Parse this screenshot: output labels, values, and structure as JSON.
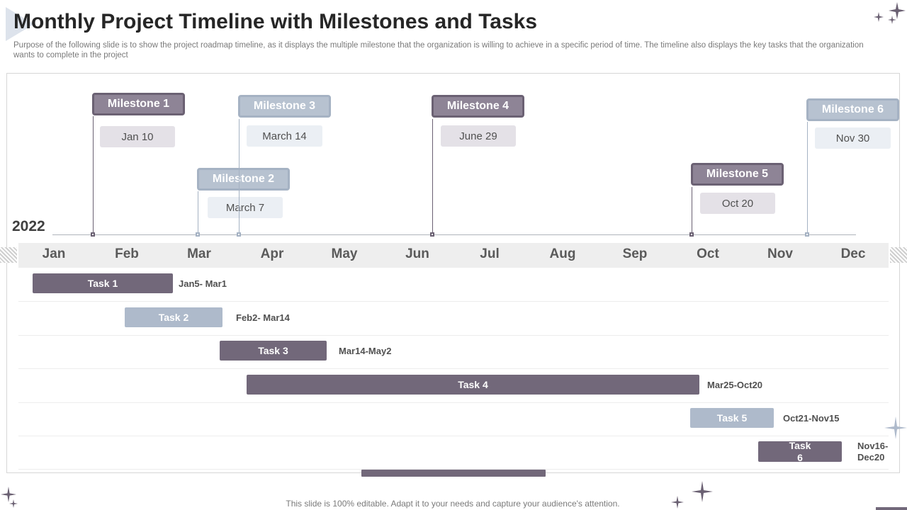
{
  "title": "Monthly Project Timeline with Milestones and Tasks",
  "subtitle": "Purpose of the following slide is to show the project roadmap timeline, as it displays the multiple milestone that the organization is willing to achieve in a specific period of time. The timeline also displays the key tasks that the organization wants to complete in the project",
  "year": "2022",
  "months": [
    "Jan",
    "Feb",
    "Mar",
    "Apr",
    "May",
    "Jun",
    "Jul",
    "Aug",
    "Sep",
    "Oct",
    "Nov",
    "Dec"
  ],
  "milestones": [
    {
      "label": "Milestone 1",
      "date": "Jan 10",
      "style": "dark"
    },
    {
      "label": "Milestone 2",
      "date": "March 7",
      "style": "light"
    },
    {
      "label": "Milestone 3",
      "date": "March 14",
      "style": "light"
    },
    {
      "label": "Milestone 4",
      "date": "June 29",
      "style": "dark"
    },
    {
      "label": "Milestone 5",
      "date": "Oct 20",
      "style": "dark"
    },
    {
      "label": "Milestone 6",
      "date": "Nov 30",
      "style": "light"
    }
  ],
  "tasks": [
    {
      "label": "Task 1",
      "range": "Jan5- Mar1",
      "style": "dark"
    },
    {
      "label": "Task 2",
      "range": "Feb2- Mar14",
      "style": "light"
    },
    {
      "label": "Task 3",
      "range": "Mar14-May2",
      "style": "dark"
    },
    {
      "label": "Task 4",
      "range": "Mar25-Oct20",
      "style": "dark"
    },
    {
      "label": "Task 5",
      "range": "Oct21-Nov15",
      "style": "light"
    },
    {
      "label": "Task 6",
      "range": "Nov16- Dec20",
      "style": "dark"
    }
  ],
  "footer": "This slide is 100% editable. Adapt it to your needs and capture your audience's attention.",
  "colors": {
    "dark": "#72687a",
    "light": "#aebacb",
    "title": "#262626"
  },
  "icons": [
    "sparkle-icon"
  ]
}
